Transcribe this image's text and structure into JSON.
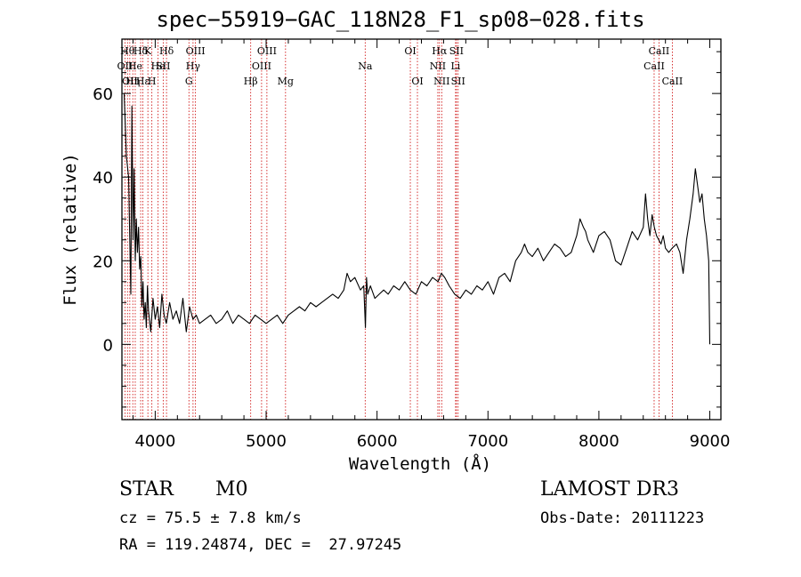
{
  "title": "spec−55919−GAC_118N28_F1_sp08−028.fits",
  "footer": {
    "object_class": "STAR",
    "subclass": "M0",
    "redshift": "cz = 75.5 ± 7.8 km/s",
    "coords": "RA = 119.24874, DEC =  27.97245",
    "survey": "LAMOST DR3",
    "obs_date": "Obs-Date: 20111223"
  },
  "chart_data": {
    "type": "line",
    "xlabel": "Wavelength (Å)",
    "ylabel": "Flux (relative)",
    "xlim": [
      3700,
      9100
    ],
    "ylim": [
      -18,
      73
    ],
    "xticks": [
      4000,
      5000,
      6000,
      7000,
      8000,
      9000
    ],
    "yticks": [
      0,
      20,
      40,
      60
    ],
    "line_color": "#000000",
    "marker_color": "#cc0000",
    "lines": [
      {
        "wave": 3727,
        "label": "OII",
        "row": 1
      },
      {
        "wave": 3750,
        "label": "Hθ",
        "row": 0
      },
      {
        "wave": 3771,
        "label": "OII",
        "row": 2
      },
      {
        "wave": 3798,
        "label": "Hη",
        "row": 2
      },
      {
        "wave": 3820,
        "label": "He",
        "row": 1
      },
      {
        "wave": 3869,
        "label": "Hδ",
        "row": 0
      },
      {
        "wave": 3889,
        "label": "Hε",
        "row": 2
      },
      {
        "wave": 3934,
        "label": "K",
        "row": 0
      },
      {
        "wave": 3970,
        "label": "H",
        "row": 2
      },
      {
        "wave": 4026,
        "label": "He",
        "row": 1
      },
      {
        "wave": 4072,
        "label": "SII",
        "row": 1
      },
      {
        "wave": 4102,
        "label": "Hδ",
        "row": 0
      },
      {
        "wave": 4304,
        "label": "G",
        "row": 2
      },
      {
        "wave": 4341,
        "label": "Hγ",
        "row": 1
      },
      {
        "wave": 4363,
        "label": "OIII",
        "row": 0
      },
      {
        "wave": 4861,
        "label": "Hβ",
        "row": 2
      },
      {
        "wave": 4959,
        "label": "OIII",
        "row": 1
      },
      {
        "wave": 5007,
        "label": "OIII",
        "row": 0
      },
      {
        "wave": 5175,
        "label": "Mg",
        "row": 2
      },
      {
        "wave": 5893,
        "label": "Na",
        "row": 1
      },
      {
        "wave": 6300,
        "label": "OI",
        "row": 0
      },
      {
        "wave": 6364,
        "label": "OI",
        "row": 2
      },
      {
        "wave": 6548,
        "label": "NII",
        "row": 1
      },
      {
        "wave": 6563,
        "label": "Hα",
        "row": 0
      },
      {
        "wave": 6583,
        "label": "NII",
        "row": 2
      },
      {
        "wave": 6708,
        "label": "Li",
        "row": 1
      },
      {
        "wave": 6716,
        "label": "SII",
        "row": 0
      },
      {
        "wave": 6731,
        "label": "SII",
        "row": 2
      },
      {
        "wave": 8498,
        "label": "CaII",
        "row": 1
      },
      {
        "wave": 8542,
        "label": "CaII",
        "row": 0
      },
      {
        "wave": 8662,
        "label": "CaII",
        "row": 2
      }
    ],
    "series": [
      {
        "x": [
          3720,
          3740,
          3760,
          3780,
          3790,
          3800,
          3810,
          3820,
          3830,
          3840,
          3850,
          3860,
          3870,
          3880,
          3890,
          3900,
          3910,
          3920,
          3930,
          3940,
          3960,
          3980,
          4000,
          4020,
          4040,
          4060,
          4080,
          4100,
          4130,
          4160,
          4190,
          4220,
          4250,
          4280,
          4310,
          4340,
          4370,
          4400,
          4450,
          4500,
          4550,
          4600,
          4650,
          4700,
          4750,
          4800,
          4850,
          4900,
          4950,
          5000,
          5050,
          5100,
          5150,
          5200,
          5250,
          5300,
          5350,
          5400,
          5450,
          5500,
          5550,
          5600,
          5650,
          5700,
          5730,
          5760,
          5800,
          5850,
          5880,
          5895,
          5905,
          5915,
          5940,
          5980,
          6020,
          6060,
          6100,
          6150,
          6200,
          6250,
          6300,
          6350,
          6400,
          6450,
          6500,
          6550,
          6580,
          6610,
          6650,
          6700,
          6750,
          6800,
          6850,
          6900,
          6950,
          7000,
          7050,
          7100,
          7150,
          7200,
          7250,
          7300,
          7330,
          7360,
          7400,
          7450,
          7500,
          7550,
          7600,
          7650,
          7700,
          7750,
          7800,
          7830,
          7860,
          7880,
          7900,
          7950,
          8000,
          8050,
          8100,
          8150,
          8200,
          8250,
          8300,
          8350,
          8400,
          8420,
          8440,
          8460,
          8480,
          8500,
          8520,
          8540,
          8560,
          8580,
          8600,
          8630,
          8660,
          8700,
          8730,
          8760,
          8790,
          8820,
          8850,
          8870,
          8890,
          8910,
          8930,
          8950,
          8970,
          8990,
          9000
        ],
        "y": [
          60,
          45,
          40,
          12,
          57,
          25,
          42,
          20,
          30,
          22,
          28,
          18,
          21,
          9,
          15,
          6,
          10,
          4,
          14,
          8,
          3,
          11,
          6,
          9,
          4,
          12,
          7,
          5,
          10,
          6,
          8,
          5,
          11,
          3,
          9,
          6,
          7,
          5,
          6,
          7,
          5,
          6,
          8,
          5,
          7,
          6,
          5,
          7,
          6,
          5,
          6,
          7,
          5,
          7,
          8,
          9,
          8,
          10,
          9,
          10,
          11,
          12,
          11,
          13,
          17,
          15,
          16,
          13,
          14,
          4,
          16,
          12,
          14,
          11,
          12,
          13,
          12,
          14,
          13,
          15,
          13,
          12,
          15,
          14,
          16,
          15,
          17,
          16,
          14,
          12,
          11,
          13,
          12,
          14,
          13,
          15,
          12,
          16,
          17,
          15,
          20,
          22,
          24,
          22,
          21,
          23,
          20,
          22,
          24,
          23,
          21,
          22,
          26,
          30,
          28,
          27,
          25,
          22,
          26,
          27,
          25,
          20,
          19,
          23,
          27,
          25,
          28,
          36,
          30,
          26,
          31,
          28,
          26,
          25,
          24,
          26,
          23,
          22,
          23,
          24,
          22,
          17,
          25,
          30,
          36,
          42,
          38,
          34,
          36,
          30,
          26,
          20,
          0
        ]
      }
    ]
  }
}
